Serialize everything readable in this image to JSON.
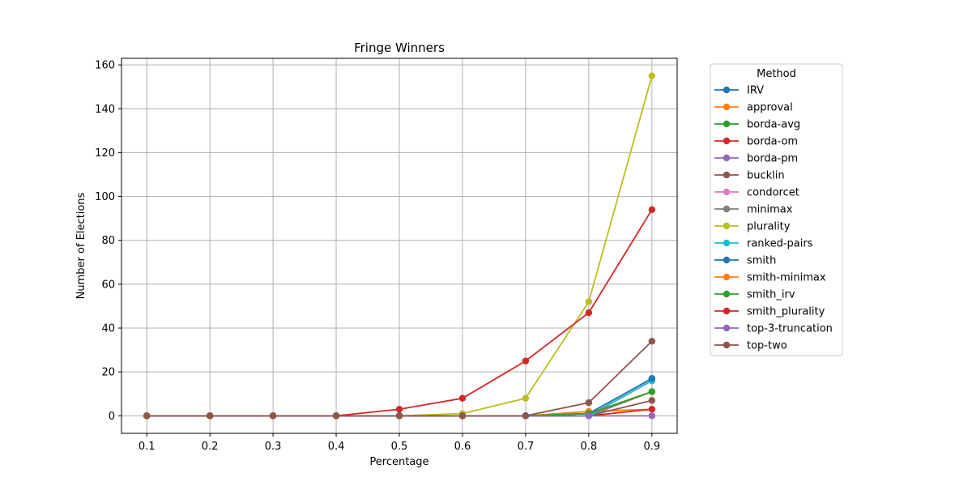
{
  "chart_data": {
    "type": "line",
    "title": "Fringe Winners",
    "xlabel": "Percentage",
    "ylabel": "Number of Elections",
    "x": [
      0.1,
      0.2,
      0.3,
      0.4,
      0.5,
      0.6,
      0.7,
      0.8,
      0.9
    ],
    "x_ticks": [
      "0.1",
      "0.2",
      "0.3",
      "0.4",
      "0.5",
      "0.6",
      "0.7",
      "0.8",
      "0.9"
    ],
    "xlim": [
      0.06,
      0.94
    ],
    "ylim": [
      -8,
      163
    ],
    "y_ticks": [
      0,
      20,
      40,
      60,
      80,
      100,
      120,
      140,
      160
    ],
    "grid": true,
    "legend": {
      "title": "Method",
      "placement": "outside-right"
    },
    "series": [
      {
        "name": "IRV",
        "color": "#1f77b4",
        "values": [
          0,
          0,
          0,
          0,
          0,
          0,
          0,
          1,
          17
        ]
      },
      {
        "name": "approval",
        "color": "#ff7f0e",
        "values": [
          0,
          0,
          0,
          0,
          0,
          0,
          0,
          2,
          3
        ]
      },
      {
        "name": "borda-avg",
        "color": "#2ca02c",
        "values": [
          0,
          0,
          0,
          0,
          0,
          0,
          0,
          1,
          11
        ]
      },
      {
        "name": "borda-om",
        "color": "#d62728",
        "values": [
          0,
          0,
          0,
          0,
          0,
          0,
          0,
          0,
          3
        ]
      },
      {
        "name": "borda-pm",
        "color": "#9467bd",
        "values": [
          0,
          0,
          0,
          0,
          0,
          0,
          0,
          0,
          16
        ]
      },
      {
        "name": "bucklin",
        "color": "#8c564b",
        "values": [
          0,
          0,
          0,
          0,
          0,
          0,
          0,
          0,
          7
        ]
      },
      {
        "name": "condorcet",
        "color": "#e377c2",
        "values": [
          0,
          0,
          0,
          0,
          0,
          0,
          0,
          0,
          16
        ]
      },
      {
        "name": "minimax",
        "color": "#7f7f7f",
        "values": [
          0,
          0,
          0,
          0,
          0,
          0,
          0,
          0,
          11
        ]
      },
      {
        "name": "plurality",
        "color": "#bcbd22",
        "values": [
          0,
          0,
          0,
          0,
          0,
          1,
          8,
          52,
          155
        ]
      },
      {
        "name": "ranked-pairs",
        "color": "#17becf",
        "values": [
          0,
          0,
          0,
          0,
          0,
          0,
          0,
          0,
          16
        ]
      },
      {
        "name": "smith",
        "color": "#1f77b4",
        "values": [
          0,
          0,
          0,
          0,
          0,
          0,
          0,
          1,
          17
        ]
      },
      {
        "name": "smith-minimax",
        "color": "#ff7f0e",
        "values": [
          0,
          0,
          0,
          0,
          0,
          0,
          0,
          1,
          11
        ]
      },
      {
        "name": "smith_irv",
        "color": "#2ca02c",
        "values": [
          0,
          0,
          0,
          0,
          0,
          0,
          0,
          1,
          11
        ]
      },
      {
        "name": "smith_plurality",
        "color": "#d62728",
        "values": [
          0,
          0,
          0,
          0,
          3,
          8,
          25,
          47,
          94
        ]
      },
      {
        "name": "top-3-truncation",
        "color": "#9467bd",
        "values": [
          0,
          0,
          0,
          0,
          0,
          0,
          0,
          0,
          0
        ]
      },
      {
        "name": "top-two",
        "color": "#8c564b",
        "values": [
          0,
          0,
          0,
          0,
          0,
          0,
          0,
          6,
          34
        ]
      }
    ]
  }
}
